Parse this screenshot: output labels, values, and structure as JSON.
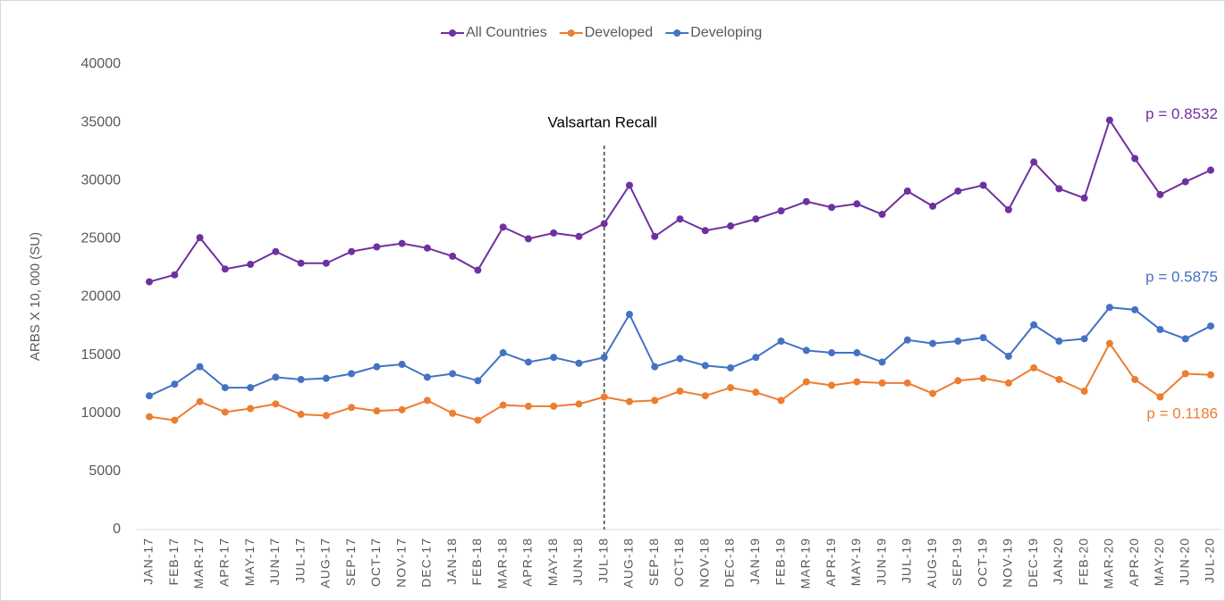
{
  "chart_data": {
    "type": "line",
    "y_label": "ARBS X 10, 000 (SU)",
    "categories": [
      "JAN-17",
      "FEB-17",
      "MAR-17",
      "APR-17",
      "MAY-17",
      "JUN-17",
      "JUL-17",
      "AUG-17",
      "SEP-17",
      "OCT-17",
      "NOV-17",
      "DEC-17",
      "JAN-18",
      "FEB-18",
      "MAR-18",
      "APR-18",
      "MAY-18",
      "JUN-18",
      "JUL-18",
      "AUG-18",
      "SEP-18",
      "OCT-18",
      "NOV-18",
      "DEC-18",
      "JAN-19",
      "FEB-19",
      "MAR-19",
      "APR-19",
      "MAY-19",
      "JUN-19",
      "JUL-19",
      "AUG-19",
      "SEP-19",
      "OCT-19",
      "NOV-19",
      "DEC-19",
      "JAN-20",
      "FEB-20",
      "MAR-20",
      "APR-20",
      "MAY-20",
      "JUN-20",
      "JUL-20"
    ],
    "series": [
      {
        "name": "All Countries",
        "color": "#7030a0",
        "end_label": "p = 0.8532",
        "values": [
          21300,
          21900,
          25100,
          22400,
          22800,
          23900,
          22900,
          22900,
          23900,
          24300,
          24600,
          24200,
          23500,
          22300,
          26000,
          25000,
          25500,
          25200,
          26300,
          29600,
          25200,
          26700,
          25700,
          26100,
          26700,
          27400,
          28200,
          27700,
          28000,
          27100,
          29100,
          27800,
          29100,
          29600,
          27500,
          31600,
          29300,
          28500,
          35200,
          31900,
          28800,
          29900,
          30900
        ]
      },
      {
        "name": "Developed",
        "color": "#ed7d31",
        "end_label": "p = 0.1186",
        "values": [
          9700,
          9400,
          11000,
          10100,
          10400,
          10800,
          9900,
          9800,
          10500,
          10200,
          10300,
          11100,
          10000,
          9400,
          10700,
          10600,
          10600,
          10800,
          11400,
          11000,
          11100,
          11900,
          11500,
          12200,
          11800,
          11100,
          12700,
          12400,
          12700,
          12600,
          12600,
          11700,
          12800,
          13000,
          12600,
          13900,
          12900,
          11900,
          16000,
          12900,
          11400,
          13400,
          13300
        ]
      },
      {
        "name": "Developing",
        "color": "#4472c4",
        "end_label": "p = 0.5875",
        "values": [
          11500,
          12500,
          14000,
          12200,
          12200,
          13100,
          12900,
          13000,
          13400,
          14000,
          14200,
          13100,
          13400,
          12800,
          15200,
          14400,
          14800,
          14300,
          14800,
          18500,
          14000,
          14700,
          14100,
          13900,
          14800,
          16200,
          15400,
          15200,
          15200,
          14400,
          16300,
          16000,
          16200,
          16500,
          14900,
          17600,
          16200,
          16400,
          19100,
          18900,
          17200,
          16400,
          17500
        ]
      }
    ],
    "ylim": [
      0,
      40000
    ],
    "yticks": [
      0,
      5000,
      10000,
      15000,
      20000,
      25000,
      30000,
      35000,
      40000
    ],
    "annotation": {
      "text": "Valsartan Recall",
      "x": "JUL-18"
    },
    "legend": "top"
  }
}
